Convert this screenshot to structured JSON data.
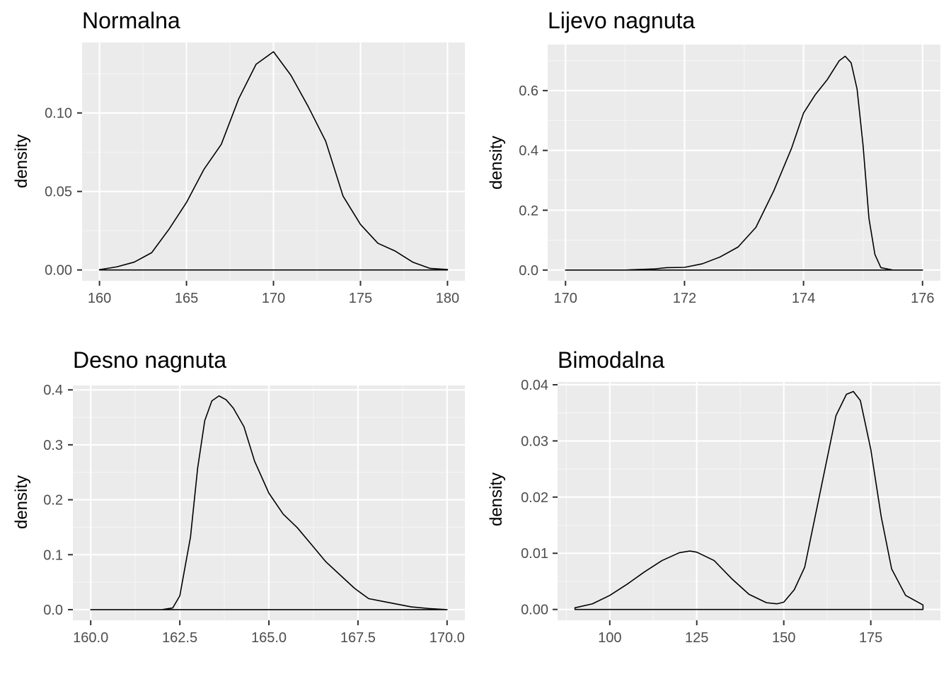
{
  "chart_data": [
    {
      "type": "area",
      "title": "Normalna",
      "xlabel": "",
      "ylabel": "density",
      "xlim": [
        159,
        181
      ],
      "ylim": [
        -0.0069,
        0.1449
      ],
      "x_ticks": [
        160,
        165,
        170,
        175,
        180
      ],
      "x_tick_labels": [
        "160",
        "165",
        "170",
        "175",
        "180"
      ],
      "y_ticks": [
        0.0,
        0.05,
        0.1
      ],
      "y_tick_labels": [
        "0.00",
        "0.05",
        "0.10"
      ],
      "grid": true,
      "curve": {
        "x": [
          160,
          161,
          162,
          163,
          164,
          165,
          166,
          167,
          168,
          169,
          170,
          171,
          172,
          173,
          174,
          175,
          176,
          177,
          178,
          179,
          180
        ],
        "y": [
          0.0002,
          0.002,
          0.005,
          0.011,
          0.026,
          0.043,
          0.064,
          0.08,
          0.109,
          0.131,
          0.139,
          0.124,
          0.104,
          0.082,
          0.047,
          0.029,
          0.017,
          0.012,
          0.005,
          0.001,
          0.0003
        ]
      }
    },
    {
      "type": "area",
      "title": "Lijevo nagnuta",
      "xlabel": "",
      "ylabel": "density",
      "xlim": [
        169.7,
        176.3
      ],
      "ylim": [
        -0.0359,
        0.754
      ],
      "x_ticks": [
        170,
        172,
        174,
        176
      ],
      "x_tick_labels": [
        "170",
        "172",
        "174",
        "176"
      ],
      "y_ticks": [
        0.0,
        0.2,
        0.4,
        0.6
      ],
      "y_tick_labels": [
        "0.0",
        "0.2",
        "0.4",
        "0.6"
      ],
      "grid": true,
      "curve": {
        "x": [
          170.0,
          171.0,
          171.5,
          171.7,
          172.0,
          172.3,
          172.6,
          172.9,
          173.2,
          173.5,
          173.8,
          174.0,
          174.2,
          174.4,
          174.6,
          174.7,
          174.8,
          174.9,
          175.0,
          175.1,
          175.2,
          175.3,
          175.5,
          176.0
        ],
        "y": [
          0.0,
          0.0,
          0.004,
          0.008,
          0.009,
          0.021,
          0.044,
          0.077,
          0.143,
          0.265,
          0.408,
          0.525,
          0.587,
          0.637,
          0.7,
          0.715,
          0.693,
          0.605,
          0.418,
          0.172,
          0.052,
          0.008,
          0.0,
          0.0
        ]
      }
    },
    {
      "type": "area",
      "title": "Desno nagnuta",
      "xlabel": "",
      "ylabel": "density",
      "xlim": [
        159.5,
        170.5
      ],
      "ylim": [
        -0.0194,
        0.408
      ],
      "x_ticks": [
        160.0,
        162.5,
        165.0,
        167.5,
        170.0
      ],
      "x_tick_labels": [
        "160.0",
        "162.5",
        "165.0",
        "167.5",
        "170.0"
      ],
      "y_ticks": [
        0.0,
        0.1,
        0.2,
        0.3,
        0.4
      ],
      "y_tick_labels": [
        "0.0",
        "0.1",
        "0.2",
        "0.3",
        "0.4"
      ],
      "grid": true,
      "curve": {
        "x": [
          160.0,
          162.0,
          162.3,
          162.5,
          162.8,
          163.0,
          163.2,
          163.4,
          163.6,
          163.8,
          164.0,
          164.3,
          164.6,
          165.0,
          165.4,
          165.8,
          166.2,
          166.6,
          167.0,
          167.4,
          167.8,
          168.2,
          168.6,
          169.0,
          169.5,
          170.0
        ],
        "y": [
          0.0,
          0.0,
          0.003,
          0.025,
          0.132,
          0.257,
          0.344,
          0.38,
          0.389,
          0.382,
          0.367,
          0.333,
          0.27,
          0.212,
          0.174,
          0.149,
          0.118,
          0.087,
          0.063,
          0.039,
          0.02,
          0.015,
          0.01,
          0.005,
          0.002,
          0.0
        ]
      }
    },
    {
      "type": "area",
      "title": "Bimodalna",
      "xlabel": "",
      "ylabel": "density",
      "xlim": [
        85,
        195
      ],
      "ylim": [
        -0.00193,
        0.0405
      ],
      "x_ticks": [
        100,
        125,
        150,
        175
      ],
      "x_tick_labels": [
        "100",
        "125",
        "150",
        "175"
      ],
      "y_ticks": [
        0.0,
        0.01,
        0.02,
        0.03,
        0.04
      ],
      "y_tick_labels": [
        "0.00",
        "0.01",
        "0.02",
        "0.03",
        "0.04"
      ],
      "grid": true,
      "curve": {
        "x": [
          90,
          95,
          100,
          105,
          110,
          115,
          120,
          123,
          125,
          130,
          135,
          140,
          145,
          148,
          150,
          153,
          156,
          160,
          165,
          168,
          170,
          172,
          175,
          178,
          181,
          185,
          190
        ],
        "y": [
          0.0003,
          0.001,
          0.0025,
          0.0045,
          0.0067,
          0.0087,
          0.0101,
          0.0104,
          0.0102,
          0.0087,
          0.0055,
          0.0027,
          0.0012,
          0.001,
          0.0013,
          0.0035,
          0.0075,
          0.0195,
          0.0345,
          0.0383,
          0.0388,
          0.0372,
          0.0285,
          0.0165,
          0.0072,
          0.0025,
          0.0008
        ]
      }
    }
  ],
  "colors": {
    "panel_background": "#ebebeb",
    "grid_major": "#ffffff",
    "grid_minor": "#f5f5f5",
    "tick_text": "#4d4d4d",
    "axis_ticks": "#333333",
    "line": "#000000"
  }
}
